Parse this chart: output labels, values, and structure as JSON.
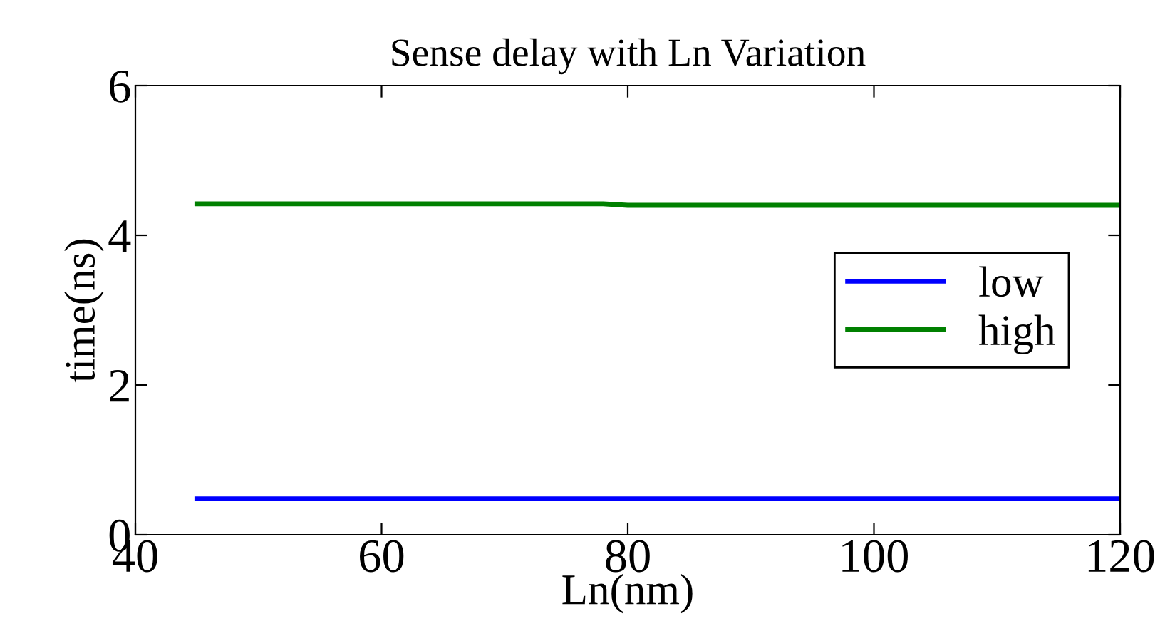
{
  "chart_data": {
    "type": "line",
    "title": "Sense delay with Ln Variation",
    "xlabel": "Ln(nm)",
    "ylabel": "time(ns)",
    "series": [
      {
        "name": "low",
        "color": "#0000ff",
        "x": [
          45,
          80,
          120
        ],
        "values": [
          0.48,
          0.48,
          0.48
        ]
      },
      {
        "name": "high",
        "color": "#008000",
        "x": [
          45,
          78,
          80,
          120
        ],
        "values": [
          4.42,
          4.42,
          4.4,
          4.4
        ]
      }
    ],
    "xlim": [
      40,
      120
    ],
    "xticks": [
      40,
      60,
      80,
      100,
      120
    ],
    "ylim": [
      0,
      6
    ],
    "yticks": [
      0,
      2,
      4,
      6
    ],
    "grid": false,
    "legend": "center right",
    "marker": "none",
    "line_style": "solid"
  }
}
